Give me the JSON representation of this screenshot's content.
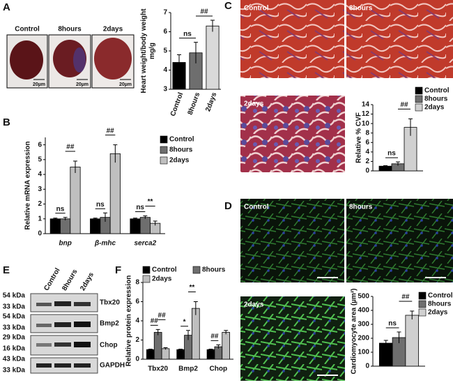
{
  "panels": [
    "A",
    "B",
    "C",
    "D",
    "E",
    "F"
  ],
  "images": {
    "hearts": {
      "labels": [
        "Control",
        "8hours",
        "2days"
      ],
      "scale": "20µm"
    },
    "masson": {
      "labels": [
        "Control",
        "8hours",
        "2days"
      ]
    },
    "staining": {
      "labels": [
        "Control",
        "8hours",
        "2days"
      ]
    },
    "blot": {
      "lanes": [
        "Control",
        "8hours",
        "2days"
      ],
      "markers": [
        "54 kDa",
        "33 kDa",
        "54 kDa",
        "33 kDa",
        "29 kDa",
        "16 kDa",
        "43 kDa",
        "33 kDa"
      ],
      "proteins": [
        "Tbx20",
        "Bmp2",
        "Chop",
        "GAPDH"
      ]
    }
  },
  "chart_data": [
    {
      "type": "bar",
      "ylabel": "Heart weight/body weight\nmg/g",
      "categories": [
        "Control",
        "8hours",
        "2days"
      ],
      "values": [
        4.4,
        4.9,
        6.3
      ],
      "errors": [
        0.4,
        0.55,
        0.3
      ],
      "colors": [
        "#000000",
        "#6e6e6e",
        "#d9d9d9"
      ],
      "annotations": [
        "ns",
        "##"
      ],
      "ylim": [
        3,
        7
      ],
      "yticks": [
        3,
        4,
        5,
        6,
        7
      ]
    },
    {
      "type": "bar",
      "ylabel": "Relative mRNA expression",
      "categories": [
        "bnp",
        "β-mhc",
        "serca2"
      ],
      "series": [
        {
          "name": "Control",
          "color": "#000000",
          "values": [
            1.0,
            1.0,
            1.0
          ],
          "errors": [
            0.05,
            0.05,
            0.05
          ]
        },
        {
          "name": "8hours",
          "color": "#6e6e6e",
          "values": [
            1.0,
            1.1,
            1.1
          ],
          "errors": [
            0.1,
            0.3,
            0.1
          ]
        },
        {
          "name": "2days",
          "color": "#bfbfbf",
          "values": [
            4.5,
            5.4,
            0.7
          ],
          "errors": [
            0.4,
            0.6,
            0.15
          ]
        }
      ],
      "annotations": [
        [
          "ns",
          "##"
        ],
        [
          "ns",
          "##"
        ],
        [
          "ns",
          "**"
        ]
      ],
      "ylim": [
        0,
        6.5
      ],
      "yticks": [
        0,
        1,
        2,
        3,
        4,
        5,
        6
      ]
    },
    {
      "type": "bar",
      "ylabel": "Relative % CVF",
      "series": [
        {
          "name": "Control",
          "color": "#000000",
          "values": [
            1.0
          ],
          "errors": [
            0.1
          ]
        },
        {
          "name": "8hours",
          "color": "#6e6e6e",
          "values": [
            1.5
          ],
          "errors": [
            0.4
          ]
        },
        {
          "name": "2days",
          "color": "#d0d0d0",
          "values": [
            9.2
          ],
          "errors": [
            1.8
          ]
        }
      ],
      "annotations": [
        [
          "ns",
          "##"
        ]
      ],
      "ylim": [
        0,
        14
      ],
      "yticks": [
        0,
        2,
        4,
        6,
        8,
        10,
        12,
        14
      ]
    },
    {
      "type": "bar",
      "ylabel": "Cardiomyocyte area (µm²)",
      "series": [
        {
          "name": "Control",
          "color": "#000000",
          "values": [
            165
          ],
          "errors": [
            20
          ]
        },
        {
          "name": "8hours",
          "color": "#6e6e6e",
          "values": [
            205
          ],
          "errors": [
            40
          ]
        },
        {
          "name": "2days",
          "color": "#d0d0d0",
          "values": [
            365
          ],
          "errors": [
            30
          ]
        }
      ],
      "annotations": [
        [
          "ns",
          "##"
        ]
      ],
      "ylim": [
        0,
        500
      ],
      "yticks": [
        0,
        100,
        200,
        300,
        400,
        500
      ]
    },
    {
      "type": "bar",
      "ylabel": "Relative protein expression",
      "categories": [
        "Tbx20",
        "Bmp2",
        "Chop"
      ],
      "series": [
        {
          "name": "Control",
          "color": "#000000",
          "values": [
            1.0,
            1.0,
            1.0
          ],
          "errors": [
            0.05,
            0.05,
            0.05
          ]
        },
        {
          "name": "8hours",
          "color": "#6e6e6e",
          "values": [
            2.8,
            2.5,
            1.3
          ],
          "errors": [
            0.3,
            0.5,
            0.2
          ]
        },
        {
          "name": "2days",
          "color": "#bfbfbf",
          "values": [
            1.1,
            5.3,
            2.8
          ],
          "errors": [
            0.1,
            0.7,
            0.2
          ]
        }
      ],
      "annotations": [
        [
          "##",
          "##"
        ],
        [
          "*",
          "**"
        ],
        [
          "##"
        ]
      ],
      "ylim": [
        0,
        8
      ],
      "yticks": [
        0,
        2,
        4,
        6,
        8
      ]
    }
  ]
}
